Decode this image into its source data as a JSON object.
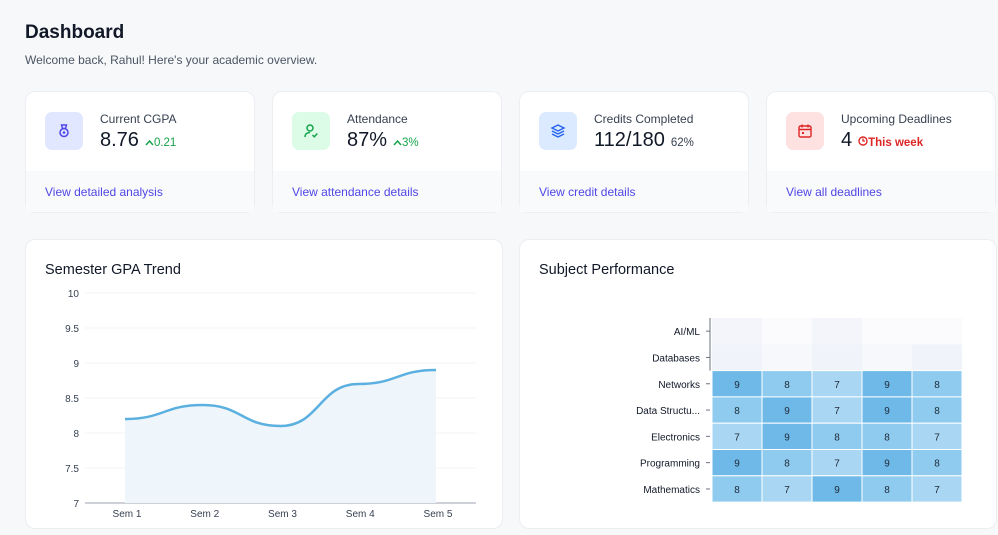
{
  "header": {
    "title": "Dashboard",
    "subtitle": "Welcome back, Rahul! Here's your academic overview."
  },
  "cards": [
    {
      "label": "Current CGPA",
      "value": "8.76",
      "change": "0.21",
      "link": "View detailed analysis",
      "icon": "medal-icon",
      "icon_bg": "#e0e7ff",
      "icon_color": "#4f46e5",
      "change_color": "#16a34a"
    },
    {
      "label": "Attendance",
      "value": "87%",
      "change": "3%",
      "link": "View attendance details",
      "icon": "user-check-icon",
      "icon_bg": "#dcfce7",
      "icon_color": "#16a34a",
      "change_color": "#16a34a"
    },
    {
      "label": "Credits Completed",
      "value": "112/180",
      "change": "62%",
      "link": "View credit details",
      "icon": "layers-icon",
      "icon_bg": "#dbeafe",
      "icon_color": "#2563eb",
      "change_color": "#374151"
    },
    {
      "label": "Upcoming Deadlines",
      "value": "4",
      "change": "This week",
      "link": "View all deadlines",
      "icon": "calendar-icon",
      "icon_bg": "#fee2e2",
      "icon_color": "#dc2626",
      "change_color": "#dc2626"
    }
  ],
  "gpa_panel": {
    "title": "Semester GPA Trend"
  },
  "subject_panel": {
    "title": "Subject Performance"
  },
  "chart_data": [
    {
      "type": "area",
      "title": "Semester GPA Trend",
      "x": [
        "Sem 1",
        "Sem 2",
        "Sem 3",
        "Sem 4",
        "Sem 5"
      ],
      "values": [
        8.2,
        8.4,
        8.1,
        8.7,
        8.9
      ],
      "ylim": [
        7,
        10
      ],
      "yticks": [
        "10",
        "9.5",
        "9",
        "8.5",
        "8",
        "7.5",
        "7"
      ],
      "grid": true,
      "color": "#5bb0e0"
    },
    {
      "type": "heatmap",
      "title": "Subject Performance",
      "rows": [
        "AI/ML",
        "Databases",
        "Networks",
        "Data Structu...",
        "Electronics",
        "Programming",
        "Mathematics"
      ],
      "cols": 5,
      "values": [
        [
          null,
          null,
          null,
          null,
          null
        ],
        [
          null,
          null,
          null,
          null,
          null
        ],
        [
          9,
          8,
          7,
          9,
          8
        ],
        [
          8,
          9,
          7,
          9,
          8
        ],
        [
          7,
          9,
          8,
          8,
          7
        ],
        [
          9,
          8,
          7,
          9,
          8
        ],
        [
          8,
          7,
          9,
          8,
          7
        ]
      ],
      "colors": {
        "high": "#6fb9e8",
        "mid": "#8ecbef",
        "low": "#a9d7f3"
      }
    }
  ]
}
